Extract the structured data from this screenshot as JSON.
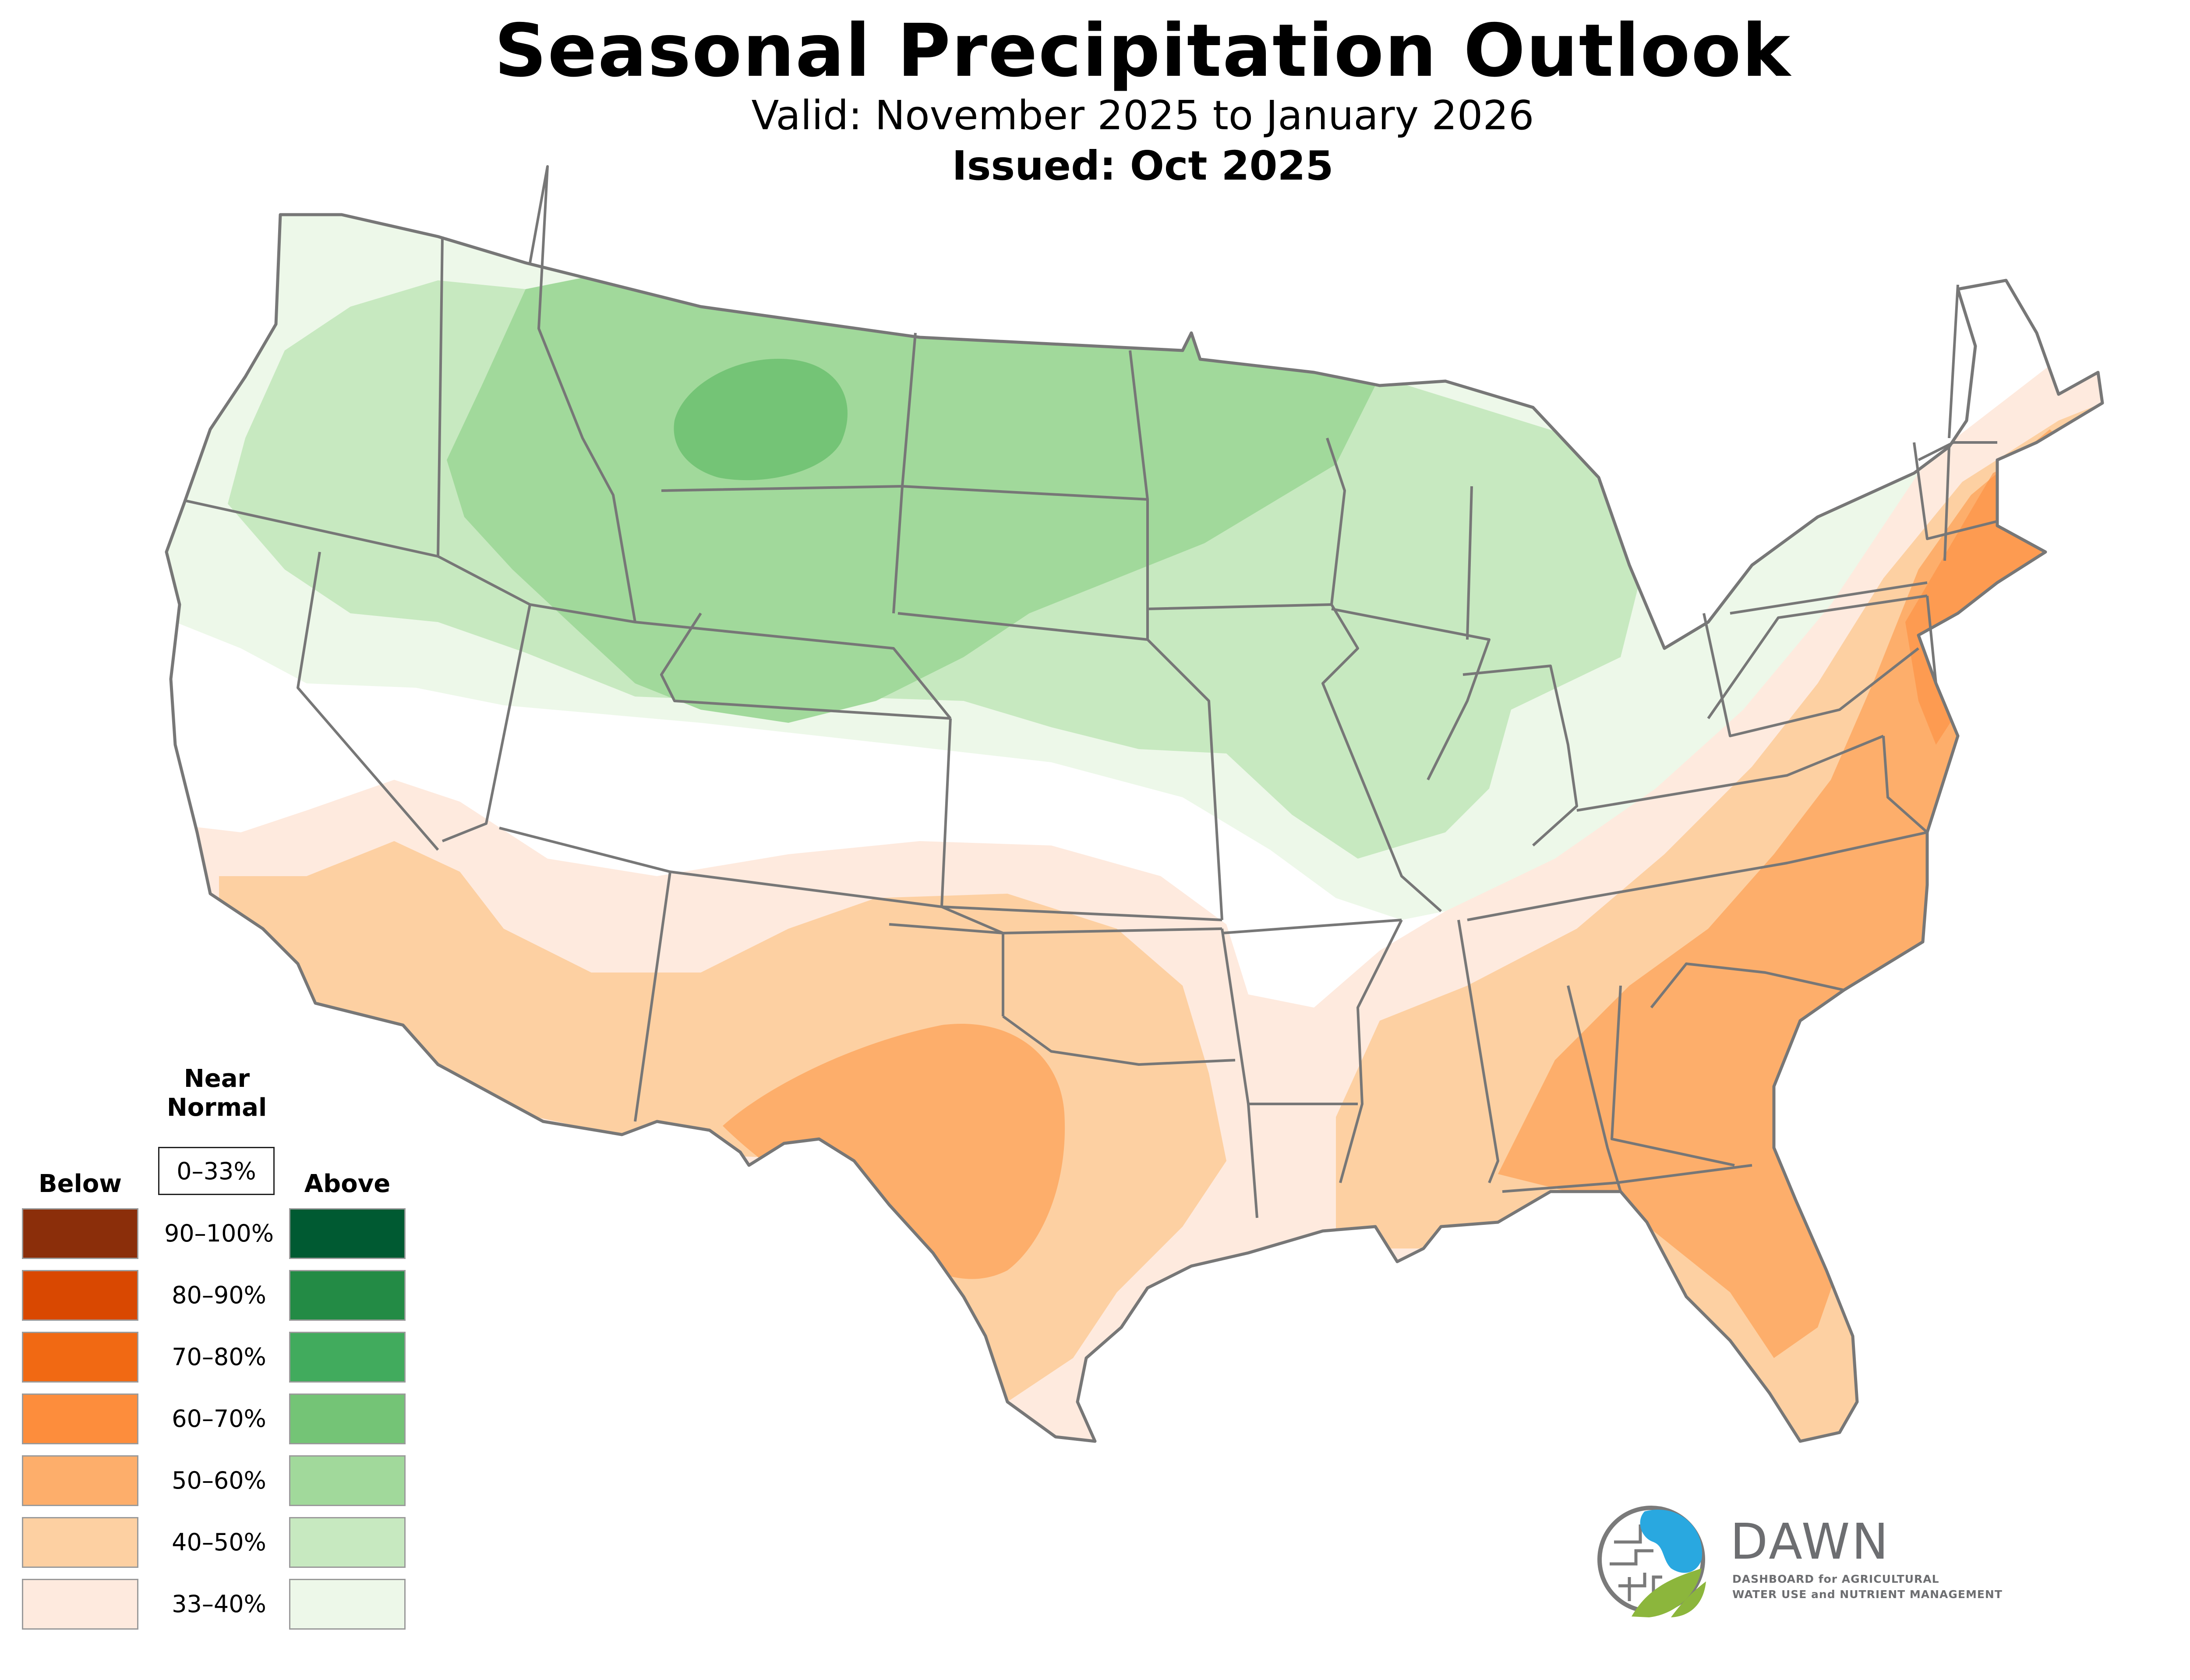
{
  "header": {
    "title": "Seasonal Precipitation Outlook",
    "valid": "Valid: November 2025 to January 2026",
    "issued": "Issued: Oct 2025"
  },
  "legend": {
    "below_label": "Below",
    "above_label": "Above",
    "near_normal_label_1": "Near",
    "near_normal_label_2": "Normal",
    "near_normal_range": "0–33%",
    "rows": [
      {
        "range": "90–100%",
        "below_color": "#8b2e0a",
        "above_color": "#005a32"
      },
      {
        "range": "80–90%",
        "below_color": "#d94801",
        "above_color": "#238b45"
      },
      {
        "range": "70–80%",
        "below_color": "#f16913",
        "above_color": "#41ab5d"
      },
      {
        "range": "60–70%",
        "below_color": "#fd8d3c",
        "above_color": "#74c476"
      },
      {
        "range": "50–60%",
        "below_color": "#fdae6b",
        "above_color": "#a1d99b"
      },
      {
        "range": "40–50%",
        "below_color": "#fdd0a2",
        "above_color": "#c7e9c0"
      },
      {
        "range": "33–40%",
        "below_color": "#feeade",
        "above_color": "#edf8e9"
      }
    ]
  },
  "logo": {
    "name": "DAWN",
    "tagline_1": "DASHBOARD for AGRICULTURAL",
    "tagline_2": "WATER USE and NUTRIENT MANAGEMENT"
  }
}
